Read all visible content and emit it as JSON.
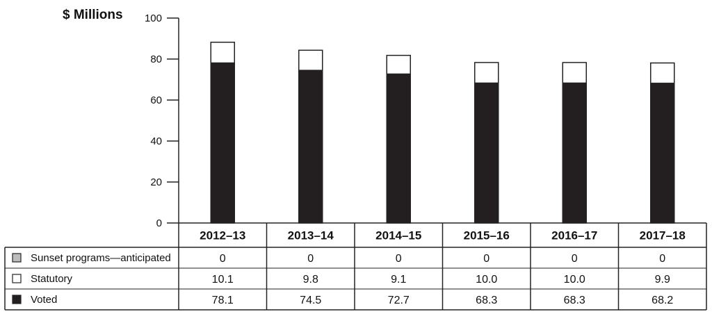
{
  "chart_data": {
    "type": "bar",
    "stacked": true,
    "ylabel": "$ Millions",
    "ylim": [
      0,
      100
    ],
    "yticks": [
      0,
      20,
      40,
      60,
      80,
      100
    ],
    "grid": false,
    "categories": [
      "2012–13",
      "2013–14",
      "2014–15",
      "2015–16",
      "2016–17",
      "2017–18"
    ],
    "series": [
      {
        "name": "Sunset programs—anticipated",
        "color": "#bdbdbd",
        "values": [
          0,
          0,
          0,
          0,
          0,
          0
        ],
        "labels": [
          "0",
          "0",
          "0",
          "0",
          "0",
          "0"
        ]
      },
      {
        "name": "Statutory",
        "color": "#ffffff",
        "values": [
          10.1,
          9.8,
          9.1,
          10.0,
          10.0,
          9.9
        ],
        "labels": [
          "10.1",
          "9.8",
          "9.1",
          "10.0",
          "10.0",
          "9.9"
        ]
      },
      {
        "name": "Voted",
        "color": "#231f20",
        "values": [
          78.1,
          74.5,
          72.7,
          68.3,
          68.3,
          68.2
        ],
        "labels": [
          "78.1",
          "74.5",
          "72.7",
          "68.3",
          "68.3",
          "68.2"
        ]
      }
    ],
    "stack_order": [
      "Voted",
      "Statutory",
      "Sunset programs—anticipated"
    ]
  }
}
